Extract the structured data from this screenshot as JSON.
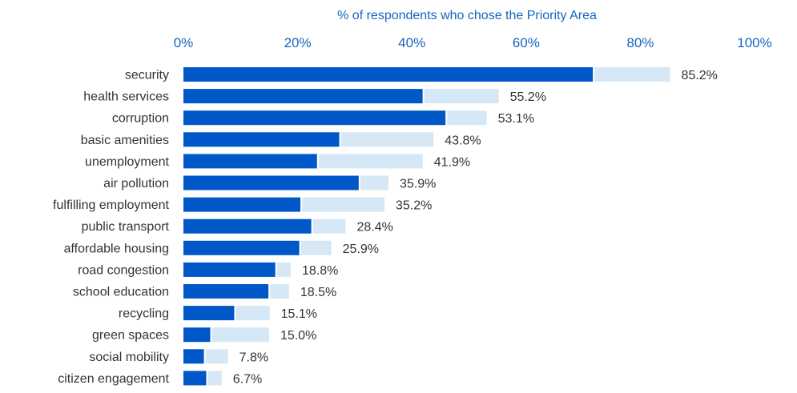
{
  "chart_data": {
    "type": "bar",
    "orientation": "horizontal",
    "title": "% of respondents who chose the Priority Area",
    "xlabel": "% of respondents who chose the Priority Area",
    "ylabel": "",
    "xlim": [
      0,
      100
    ],
    "x_ticks": [
      "0%",
      "20%",
      "40%",
      "60%",
      "80%",
      "100%"
    ],
    "tick_values": [
      0,
      20,
      40,
      60,
      80,
      100
    ],
    "axis_position": "top",
    "grid": false,
    "legend": "none",
    "categories": [
      "security",
      "health services",
      "corruption",
      "basic amenities",
      "unemployment",
      "air pollution",
      "fulfilling employment",
      "public transport",
      "affordable housing",
      "road congestion",
      "school education",
      "recycling",
      "green spaces",
      "social mobility",
      "citizen engagement"
    ],
    "series": [
      {
        "values": [
          71.7,
          41.9,
          45.9,
          27.3,
          23.4,
          30.7,
          20.5,
          22.4,
          20.3,
          16.1,
          14.9,
          8.9,
          4.7,
          3.6,
          4.0
        ]
      },
      {
        "values": [
          85.2,
          55.2,
          53.1,
          43.8,
          41.9,
          35.9,
          35.2,
          28.4,
          25.9,
          18.8,
          18.5,
          15.1,
          15.0,
          7.8,
          6.7
        ]
      }
    ],
    "value_labels": [
      "85.2%",
      "55.2%",
      "53.1%",
      "43.8%",
      "41.9%",
      "35.9%",
      "35.2%",
      "28.4%",
      "25.9%",
      "18.8%",
      "18.5%",
      "15.1%",
      "15.0%",
      "7.8%",
      "6.7%"
    ],
    "colors": {
      "primary": "#0057c8",
      "total": "#d6e8f6",
      "axis_text": "#1565c0",
      "label_text": "#333333"
    }
  }
}
